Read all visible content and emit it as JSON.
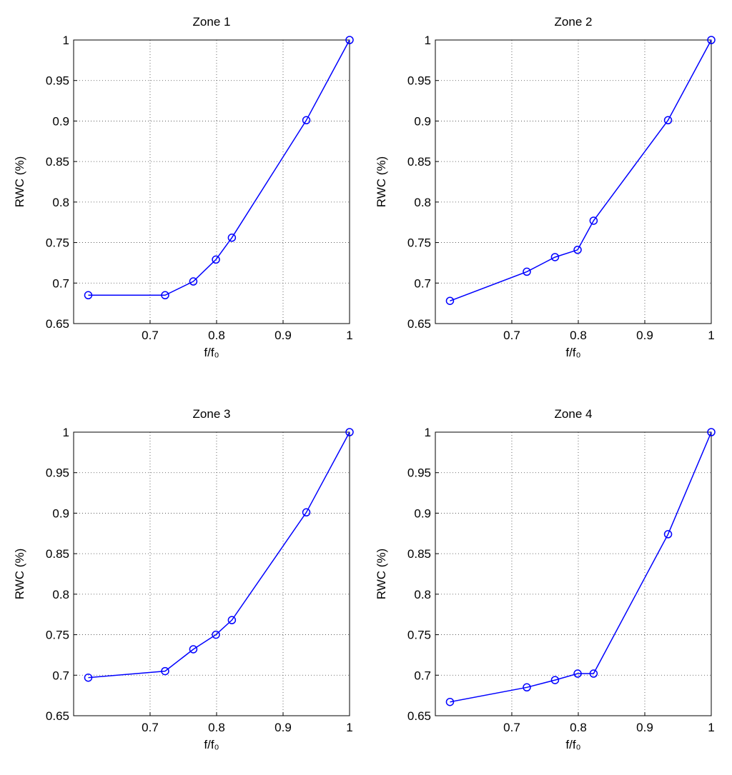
{
  "chart_data": [
    {
      "type": "line",
      "title": "Zone 1",
      "xlabel": "f/f₀",
      "ylabel": "RWC (%)",
      "x": [
        0.607,
        0.7226,
        0.765,
        0.799,
        0.823,
        0.935,
        1
      ],
      "values": [
        0.685,
        0.685,
        0.702,
        0.729,
        0.756,
        0.901,
        1
      ],
      "color": "#0000ff",
      "marker": "circle",
      "grid": true,
      "xlim": [
        0.585,
        1
      ],
      "xticks": [
        0.7,
        0.8,
        0.9,
        1
      ],
      "ylim": [
        0.65,
        1
      ],
      "yticks": [
        0.65,
        0.7,
        0.75,
        0.8,
        0.85,
        0.9,
        0.95,
        1
      ]
    },
    {
      "type": "line",
      "title": "Zone 2",
      "xlabel": "f/f₀",
      "ylabel": "RWC (%)",
      "x": [
        0.607,
        0.7226,
        0.765,
        0.799,
        0.823,
        0.935,
        1
      ],
      "values": [
        0.678,
        0.714,
        0.732,
        0.741,
        0.777,
        0.901,
        1
      ],
      "color": "#0000ff",
      "marker": "circle",
      "grid": true,
      "xlim": [
        0.585,
        1
      ],
      "xticks": [
        0.7,
        0.8,
        0.9,
        1
      ],
      "ylim": [
        0.65,
        1
      ],
      "yticks": [
        0.65,
        0.7,
        0.75,
        0.8,
        0.85,
        0.9,
        0.95,
        1
      ]
    },
    {
      "type": "line",
      "title": "Zone 3",
      "xlabel": "f/f₀",
      "ylabel": "RWC (%)",
      "x": [
        0.607,
        0.7226,
        0.765,
        0.799,
        0.823,
        0.935,
        1
      ],
      "values": [
        0.697,
        0.705,
        0.732,
        0.75,
        0.768,
        0.901,
        1
      ],
      "color": "#0000ff",
      "marker": "circle",
      "grid": true,
      "xlim": [
        0.585,
        1
      ],
      "xticks": [
        0.7,
        0.8,
        0.9,
        1
      ],
      "ylim": [
        0.65,
        1
      ],
      "yticks": [
        0.65,
        0.7,
        0.75,
        0.8,
        0.85,
        0.9,
        0.95,
        1
      ]
    },
    {
      "type": "line",
      "title": "Zone 4",
      "xlabel": "f/f₀",
      "ylabel": "RWC (%)",
      "x": [
        0.607,
        0.7226,
        0.765,
        0.799,
        0.823,
        0.935,
        1
      ],
      "values": [
        0.667,
        0.685,
        0.694,
        0.702,
        0.702,
        0.874,
        1
      ],
      "color": "#0000ff",
      "marker": "circle",
      "grid": true,
      "xlim": [
        0.585,
        1
      ],
      "xticks": [
        0.7,
        0.8,
        0.9,
        1
      ],
      "ylim": [
        0.65,
        1
      ],
      "yticks": [
        0.65,
        0.7,
        0.75,
        0.8,
        0.85,
        0.9,
        0.95,
        1
      ]
    }
  ]
}
